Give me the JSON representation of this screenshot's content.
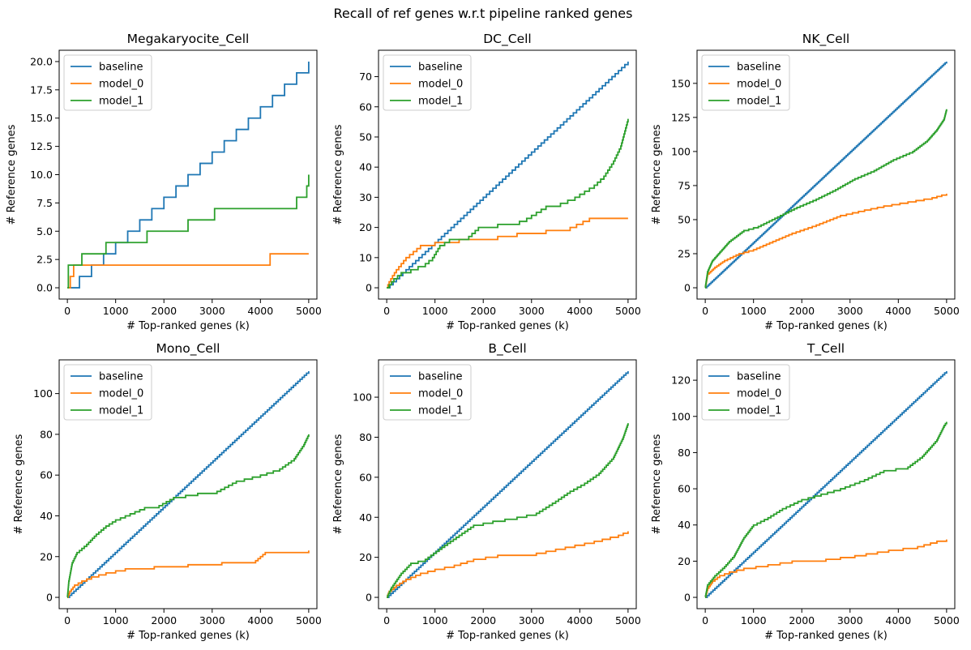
{
  "figure": {
    "suptitle": "Recall of ref genes w.r.t pipeline ranked genes"
  },
  "colors": {
    "baseline": "#1f77b4",
    "model_0": "#ff7f0e",
    "model_1": "#2ca02c"
  },
  "chart_data": [
    {
      "type": "line",
      "title": "Megakaryocite_Cell",
      "xlabel": "# Top-ranked genes (k)",
      "ylabel": "# Reference genes",
      "xlim": [
        -170,
        5170
      ],
      "ylim": [
        -1.0,
        21.0
      ],
      "xticks": [
        0,
        1000,
        2000,
        3000,
        4000,
        5000
      ],
      "yticks": [
        0.0,
        2.5,
        5.0,
        7.5,
        10.0,
        12.5,
        15.0,
        17.5,
        20.0
      ],
      "ytick_labels": [
        "0.0",
        "2.5",
        "5.0",
        "7.5",
        "10.0",
        "12.5",
        "15.0",
        "17.5",
        "20.0"
      ],
      "legend_position": "upper-left",
      "series": [
        {
          "name": "baseline",
          "step": true,
          "x": [
            0,
            250,
            500,
            750,
            1000,
            1250,
            1500,
            1750,
            2000,
            2250,
            2500,
            2750,
            3000,
            3250,
            3500,
            3750,
            4000,
            4250,
            4500,
            4750,
            5000
          ],
          "y": [
            0,
            1,
            2,
            3,
            4,
            5,
            6,
            7,
            8,
            9,
            10,
            11,
            12,
            13,
            14,
            15,
            16,
            17,
            18,
            19,
            20
          ]
        },
        {
          "name": "model_0",
          "step": true,
          "x": [
            0,
            60,
            130,
            4200,
            5000
          ],
          "y": [
            0,
            1,
            2,
            3,
            3
          ]
        },
        {
          "name": "model_1",
          "step": true,
          "x": [
            0,
            20,
            300,
            800,
            1650,
            2500,
            3050,
            4750,
            4960,
            5000
          ],
          "y": [
            0,
            2,
            3,
            4,
            5,
            6,
            7,
            8,
            9,
            10
          ]
        }
      ]
    },
    {
      "type": "line",
      "title": "DC_Cell",
      "xlabel": "# Top-ranked genes (k)",
      "ylabel": "# Reference genes",
      "xlim": [
        -170,
        5170
      ],
      "ylim": [
        -3.75,
        78.75
      ],
      "xticks": [
        0,
        1000,
        2000,
        3000,
        4000,
        5000
      ],
      "yticks": [
        0,
        10,
        20,
        30,
        40,
        50,
        60,
        70
      ],
      "ytick_labels": [
        "0",
        "10",
        "20",
        "30",
        "40",
        "50",
        "60",
        "70"
      ],
      "legend_position": "upper-left",
      "series": [
        {
          "name": "baseline",
          "step": true,
          "x": [
            0,
            5000
          ],
          "y": [
            0,
            75
          ],
          "linear": true
        },
        {
          "name": "model_0",
          "step": true,
          "x": [
            0,
            50,
            120,
            200,
            300,
            400,
            550,
            700,
            1000,
            1500,
            2300,
            2700,
            3300,
            3800,
            4200,
            5000
          ],
          "y": [
            0,
            2,
            4,
            6,
            8,
            10,
            12,
            14,
            15,
            16,
            17,
            18,
            19,
            20,
            23,
            23
          ],
          "smooth": true
        },
        {
          "name": "model_1",
          "step": true,
          "x": [
            0,
            150,
            300,
            500,
            800,
            950,
            1100,
            1300,
            1500,
            1700,
            1900,
            2300,
            2600,
            2900,
            3300,
            3600,
            3900,
            4100,
            4300,
            4500,
            4700,
            4850,
            4950,
            5000
          ],
          "y": [
            0,
            3,
            5,
            6,
            8,
            10,
            14,
            16,
            16,
            17,
            20,
            21,
            21,
            23,
            27,
            28,
            30,
            32,
            34,
            37,
            42,
            47,
            53,
            56
          ],
          "smooth": true
        }
      ]
    },
    {
      "type": "line",
      "title": "NK_Cell",
      "xlabel": "# Top-ranked genes (k)",
      "ylabel": "# Reference genes",
      "xlim": [
        -170,
        5170
      ],
      "ylim": [
        -8.3,
        174.3
      ],
      "xticks": [
        0,
        1000,
        2000,
        3000,
        4000,
        5000
      ],
      "yticks": [
        0,
        25,
        50,
        75,
        100,
        125,
        150
      ],
      "ytick_labels": [
        "0",
        "25",
        "50",
        "75",
        "100",
        "125",
        "150"
      ],
      "legend_position": "upper-left",
      "series": [
        {
          "name": "baseline",
          "step": true,
          "x": [
            0,
            5000
          ],
          "y": [
            0,
            166
          ],
          "linear": true
        },
        {
          "name": "model_0",
          "step": true,
          "x": [
            0,
            50,
            200,
            400,
            700,
            1000,
            1400,
            1800,
            2300,
            2800,
            3300,
            3700,
            4200,
            4700,
            5000
          ],
          "y": [
            0,
            10,
            15,
            20,
            25,
            28,
            34,
            40,
            46,
            53,
            57,
            60,
            63,
            66,
            69
          ],
          "smooth": true
        },
        {
          "name": "model_1",
          "step": true,
          "x": [
            0,
            50,
            150,
            300,
            500,
            800,
            1100,
            1500,
            1900,
            2300,
            2700,
            3100,
            3500,
            3900,
            4300,
            4600,
            4800,
            4950,
            5000
          ],
          "y": [
            0,
            12,
            20,
            26,
            34,
            42,
            45,
            52,
            59,
            65,
            72,
            80,
            86,
            94,
            100,
            108,
            116,
            124,
            131
          ],
          "smooth": true
        }
      ]
    },
    {
      "type": "line",
      "title": "Mono_Cell",
      "xlabel": "# Top-ranked genes (k)",
      "ylabel": "# Reference genes",
      "xlim": [
        -170,
        5170
      ],
      "ylim": [
        -5.55,
        116.55
      ],
      "xticks": [
        0,
        1000,
        2000,
        3000,
        4000,
        5000
      ],
      "yticks": [
        0,
        20,
        40,
        60,
        80,
        100
      ],
      "ytick_labels": [
        "0",
        "20",
        "40",
        "60",
        "80",
        "100"
      ],
      "legend_position": "upper-left",
      "series": [
        {
          "name": "baseline",
          "step": true,
          "x": [
            0,
            5000
          ],
          "y": [
            0,
            111
          ],
          "linear": true
        },
        {
          "name": "model_0",
          "step": true,
          "x": [
            0,
            50,
            150,
            300,
            500,
            800,
            1200,
            1800,
            2500,
            3200,
            3900,
            4100,
            5000
          ],
          "y": [
            0,
            3,
            6,
            8,
            10,
            12,
            14,
            15,
            16,
            17,
            18,
            22,
            23
          ],
          "smooth": true
        },
        {
          "name": "model_1",
          "step": true,
          "x": [
            0,
            30,
            100,
            200,
            400,
            600,
            800,
            1000,
            1300,
            1600,
            1900,
            2200,
            2700,
            3100,
            3500,
            4000,
            4400,
            4700,
            4900,
            5000
          ],
          "y": [
            0,
            8,
            17,
            22,
            26,
            31,
            35,
            38,
            41,
            44,
            45,
            49,
            51,
            52,
            57,
            60,
            63,
            68,
            75,
            80
          ],
          "smooth": true
        }
      ]
    },
    {
      "type": "line",
      "title": "B_Cell",
      "xlabel": "# Top-ranked genes (k)",
      "ylabel": "# Reference genes",
      "xlim": [
        -170,
        5170
      ],
      "ylim": [
        -5.65,
        118.65
      ],
      "xticks": [
        0,
        1000,
        2000,
        3000,
        4000,
        5000
      ],
      "yticks": [
        0,
        20,
        40,
        60,
        80,
        100
      ],
      "ytick_labels": [
        "0",
        "20",
        "40",
        "60",
        "80",
        "100"
      ],
      "legend_position": "upper-left",
      "series": [
        {
          "name": "baseline",
          "step": true,
          "x": [
            0,
            5000
          ],
          "y": [
            0,
            113
          ],
          "linear": true
        },
        {
          "name": "model_0",
          "step": true,
          "x": [
            0,
            50,
            200,
            400,
            700,
            1000,
            1400,
            1800,
            2300,
            3100,
            3700,
            4300,
            4800,
            5000
          ],
          "y": [
            0,
            3,
            6,
            9,
            12,
            14,
            16,
            19,
            21,
            22,
            25,
            28,
            31,
            33
          ],
          "smooth": true
        },
        {
          "name": "model_1",
          "step": true,
          "x": [
            0,
            100,
            300,
            500,
            800,
            1200,
            1500,
            1800,
            2200,
            2700,
            3100,
            3500,
            3800,
            4100,
            4400,
            4700,
            4900,
            5000
          ],
          "y": [
            0,
            5,
            12,
            17,
            19,
            26,
            31,
            36,
            38,
            40,
            42,
            48,
            53,
            57,
            62,
            70,
            80,
            87
          ],
          "smooth": true
        }
      ]
    },
    {
      "type": "line",
      "title": "T_Cell",
      "xlabel": "# Top-ranked genes (k)",
      "ylabel": "# Reference genes",
      "xlim": [
        -170,
        5170
      ],
      "ylim": [
        -6.25,
        131.25
      ],
      "xticks": [
        0,
        1000,
        2000,
        3000,
        4000,
        5000
      ],
      "yticks": [
        0,
        20,
        40,
        60,
        80,
        100,
        120
      ],
      "ytick_labels": [
        "0",
        "20",
        "40",
        "60",
        "80",
        "100",
        "120"
      ],
      "legend_position": "upper-left",
      "series": [
        {
          "name": "baseline",
          "step": true,
          "x": [
            0,
            5000
          ],
          "y": [
            0,
            125
          ],
          "linear": true
        },
        {
          "name": "model_0",
          "step": true,
          "x": [
            0,
            50,
            150,
            300,
            500,
            800,
            1300,
            1800,
            2500,
            3100,
            3800,
            4400,
            4800,
            5000
          ],
          "y": [
            0,
            5,
            9,
            12,
            14,
            16,
            18,
            20,
            21,
            23,
            26,
            28,
            31,
            32
          ],
          "smooth": true
        },
        {
          "name": "model_1",
          "step": true,
          "x": [
            0,
            50,
            200,
            400,
            600,
            800,
            1000,
            1300,
            1600,
            2000,
            2400,
            2800,
            3300,
            3700,
            4200,
            4500,
            4800,
            4950,
            5000
          ],
          "y": [
            0,
            7,
            12,
            17,
            23,
            33,
            40,
            44,
            49,
            54,
            57,
            60,
            65,
            70,
            72,
            78,
            87,
            95,
            97
          ],
          "smooth": true
        }
      ]
    }
  ]
}
